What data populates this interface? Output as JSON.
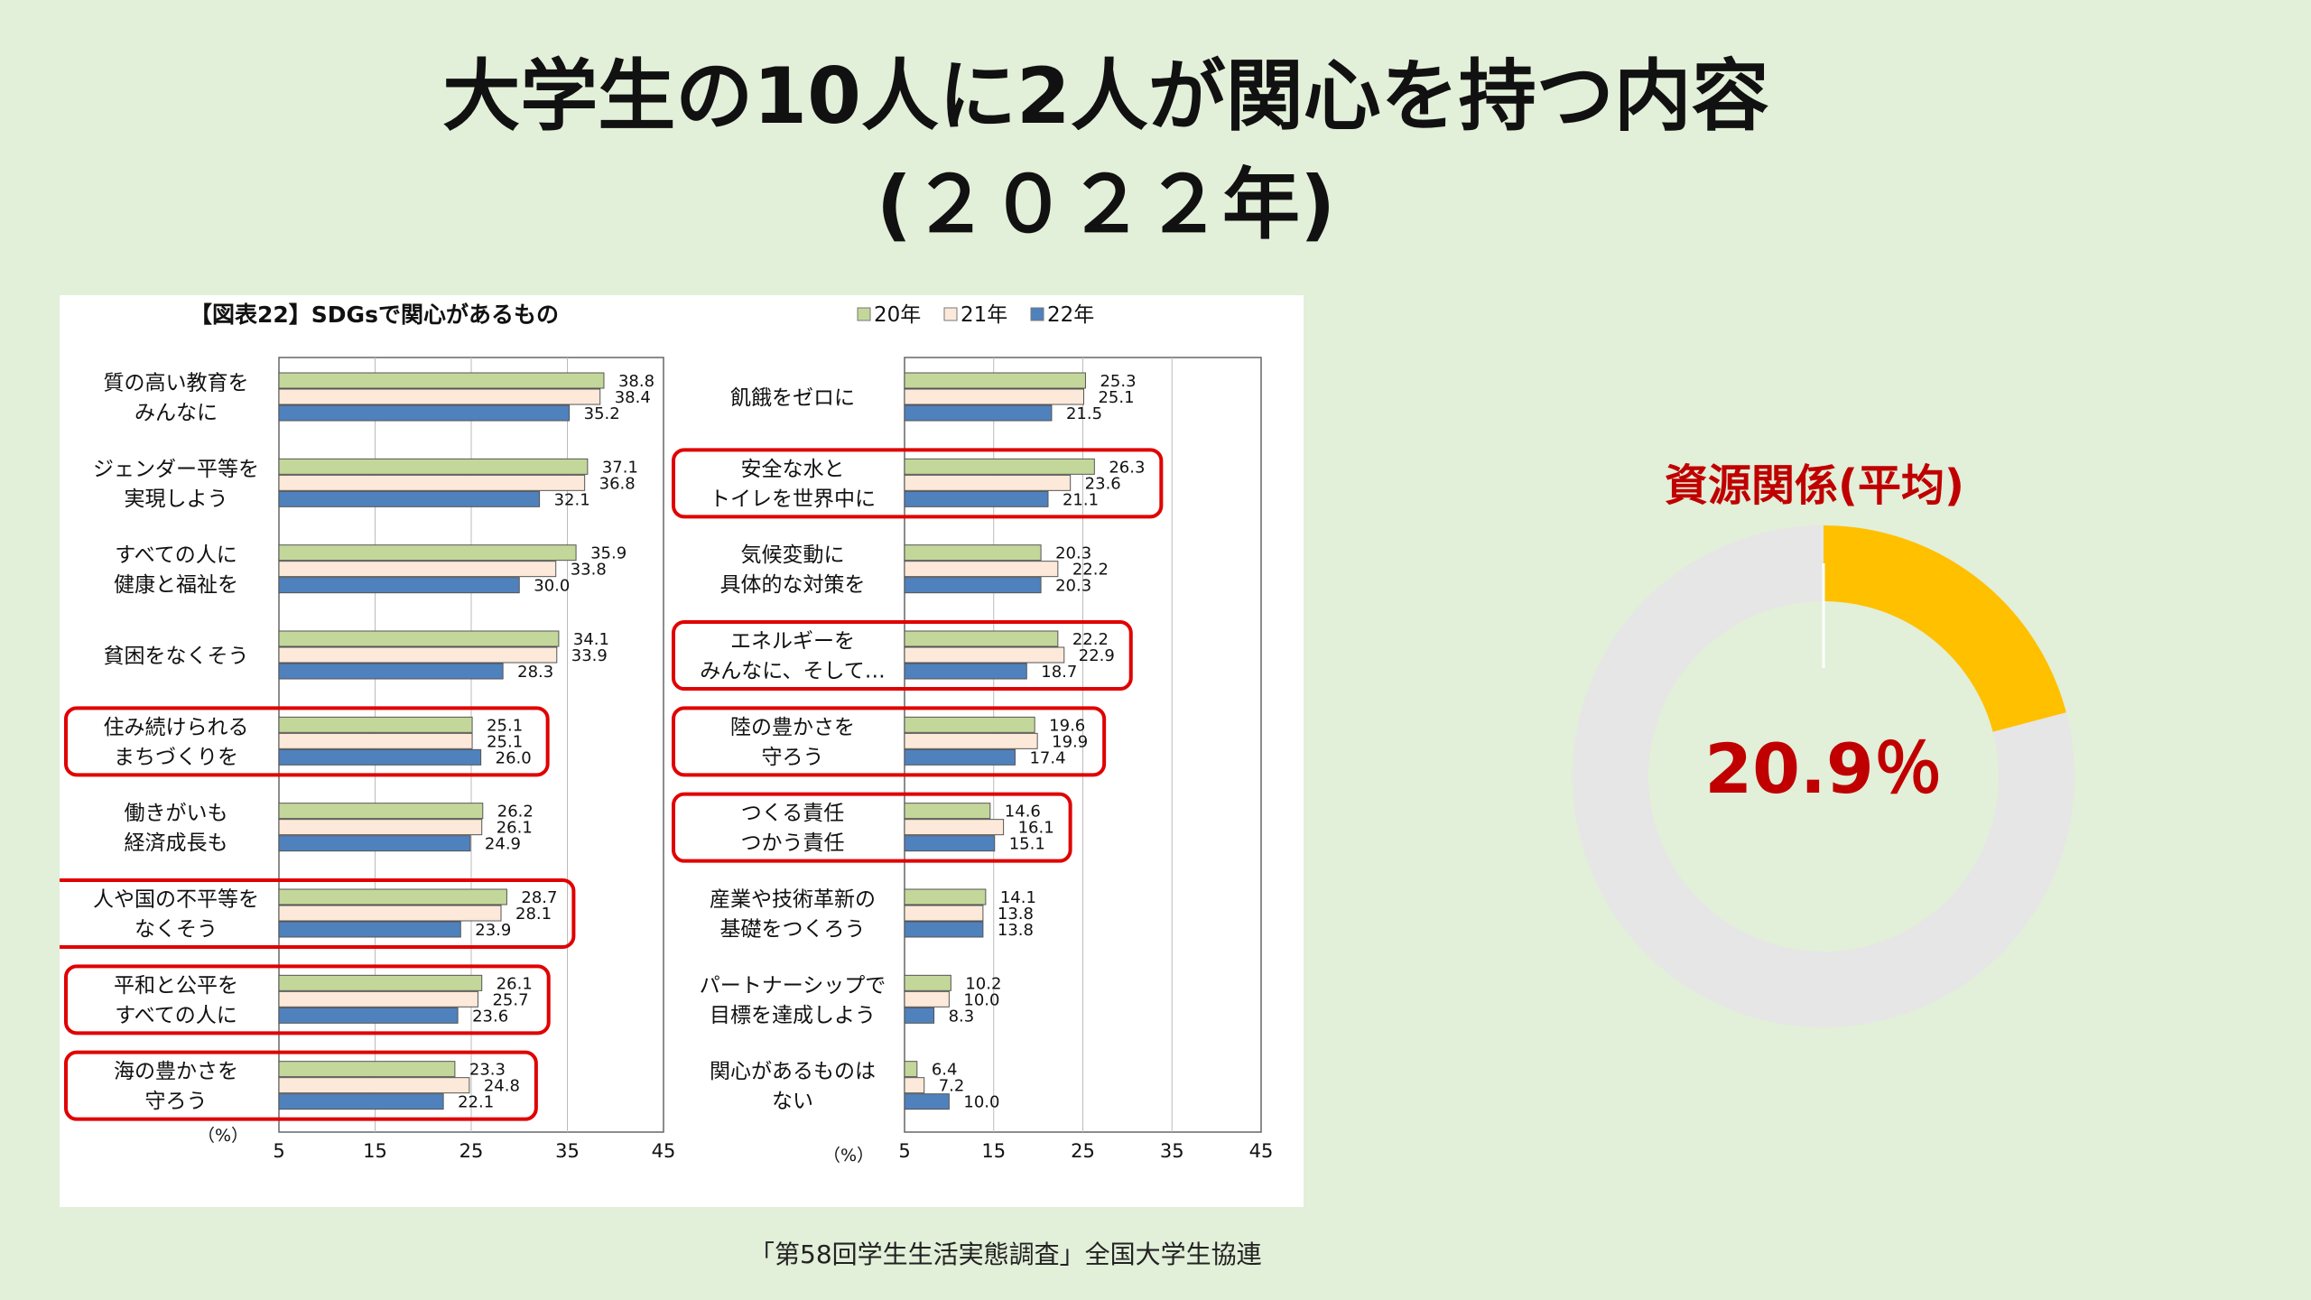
{
  "title": {
    "line1": "大学生の10人に2人が関心を持つ内容",
    "line2": "(２０２２年)"
  },
  "source": "「第58回学生生活実態調査」全国大学生協連",
  "donut": {
    "title": "資源関係(平均)",
    "value_label": "20.9％",
    "value": 20.9,
    "colors": {
      "filled": "#ffc000",
      "rest": "#e6e6e6"
    }
  },
  "chart_data": {
    "type": "bar",
    "orientation": "horizontal",
    "title": "【図表22】SDGsで関心があるもの",
    "unit_label": "（%）",
    "xlim": [
      5,
      45
    ],
    "xticks": [
      5,
      15,
      25,
      35,
      45
    ],
    "grid": true,
    "legend_position": "top-right",
    "series": [
      {
        "name": "20年",
        "color": "#c4d79b"
      },
      {
        "name": "21年",
        "color": "#fde9d9"
      },
      {
        "name": "22年",
        "color": "#4f81bd"
      }
    ],
    "panels": [
      {
        "categories": [
          {
            "label": [
              "質の高い教育を",
              "みんなに"
            ],
            "values": [
              38.8,
              38.4,
              35.2
            ],
            "highlight": false
          },
          {
            "label": [
              "ジェンダー平等を",
              "実現しよう"
            ],
            "values": [
              37.1,
              36.8,
              32.1
            ],
            "highlight": false
          },
          {
            "label": [
              "すべての人に",
              "健康と福祉を"
            ],
            "values": [
              35.9,
              33.8,
              30.0
            ],
            "highlight": false
          },
          {
            "label": [
              "貧困をなくそう"
            ],
            "values": [
              34.1,
              33.9,
              28.3
            ],
            "highlight": false
          },
          {
            "label": [
              "住み続けられる",
              "まちづくりを"
            ],
            "values": [
              25.1,
              25.1,
              26.0
            ],
            "highlight": true
          },
          {
            "label": [
              "働きがいも",
              "経済成長も"
            ],
            "values": [
              26.2,
              26.1,
              24.9
            ],
            "highlight": false
          },
          {
            "label": [
              "人や国の不平等を",
              "なくそう"
            ],
            "values": [
              28.7,
              28.1,
              23.9
            ],
            "highlight": true
          },
          {
            "label": [
              "平和と公平を",
              "すべての人に"
            ],
            "values": [
              26.1,
              25.7,
              23.6
            ],
            "highlight": true
          },
          {
            "label": [
              "海の豊かさを",
              "守ろう"
            ],
            "values": [
              23.3,
              24.8,
              22.1
            ],
            "highlight": true
          }
        ]
      },
      {
        "categories": [
          {
            "label": [
              "飢餓をゼロに"
            ],
            "values": [
              25.3,
              25.1,
              21.5
            ],
            "highlight": false
          },
          {
            "label": [
              "安全な水と",
              "トイレを世界中に"
            ],
            "values": [
              26.3,
              23.6,
              21.1
            ],
            "highlight": true
          },
          {
            "label": [
              "気候変動に",
              "具体的な対策を"
            ],
            "values": [
              20.3,
              22.2,
              20.3
            ],
            "highlight": false
          },
          {
            "label": [
              "エネルギーを",
              "みんなに、そして…"
            ],
            "values": [
              22.2,
              22.9,
              18.7
            ],
            "highlight": true
          },
          {
            "label": [
              "陸の豊かさを",
              "守ろう"
            ],
            "values": [
              19.6,
              19.9,
              17.4
            ],
            "highlight": true
          },
          {
            "label": [
              "つくる責任",
              "つかう責任"
            ],
            "values": [
              14.6,
              16.1,
              15.1
            ],
            "highlight": true
          },
          {
            "label": [
              "産業や技術革新の",
              "基礎をつくろう"
            ],
            "values": [
              14.1,
              13.8,
              13.8
            ],
            "highlight": false
          },
          {
            "label": [
              "パートナーシップで",
              "目標を達成しよう"
            ],
            "values": [
              10.2,
              10.0,
              8.3
            ],
            "highlight": false
          },
          {
            "label": [
              "関心があるものは",
              "ない"
            ],
            "values": [
              6.4,
              7.2,
              10.0
            ],
            "highlight": false
          }
        ]
      }
    ]
  }
}
